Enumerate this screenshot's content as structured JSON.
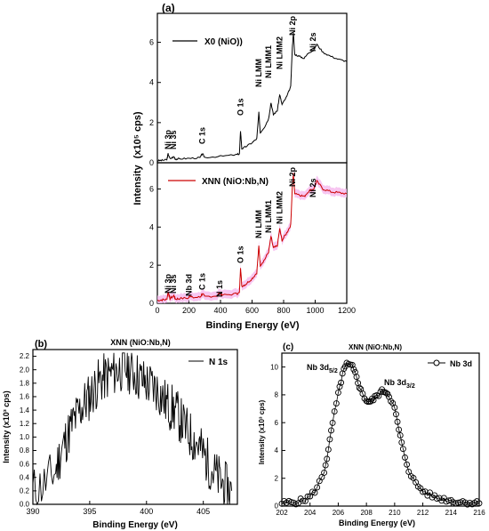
{
  "colors": {
    "x0_line": "#000000",
    "xnn_line": "#cc0000",
    "xnn_band": "#f5b8ee",
    "axis": "#000000"
  },
  "panel_a": {
    "label": "(a)",
    "ylabel": "Intensity",
    "ylabel_unit": "(x10⁵ cps)",
    "xlabel": "Binding Energy  (eV)",
    "xticks": [
      "0",
      "200",
      "400",
      "600",
      "800",
      "1000",
      "1200"
    ],
    "yticks": [
      "0",
      "2",
      "4",
      "6"
    ],
    "top_legend": "X0 (NiO))",
    "bottom_legend": "XNN (NiO:Nb,N)",
    "top_annotations": [
      "Ni 3p",
      "Ni 3s",
      "C 1s",
      "O 1s",
      "Ni LMM",
      "Ni LMM1",
      "Ni LMM2",
      "Ni 2p",
      "Ni 2s"
    ],
    "bottom_annotations": [
      "Ni 3p",
      "Ni 3s",
      "Nb 3d",
      "C 1s",
      "N 1s",
      "O 1s",
      "Ni LMM",
      "Ni LMM1",
      "Ni LMM2",
      "Ni 2p",
      "Ni 2s"
    ]
  },
  "panel_b": {
    "label": "(b)",
    "title": "XNN (NiO:Nb,N)",
    "legend": "N 1s",
    "ylabel": "Intensity  (x10³ cps)",
    "xlabel": "Binding Energy  (eV)",
    "xticks": [
      "390",
      "395",
      "400",
      "405"
    ],
    "yticks": [
      "0.0",
      "0.2",
      "0.4",
      "0.6",
      "0.8",
      "1.0",
      "1.2",
      "1.4",
      "1.6",
      "1.8",
      "2.0",
      "2.2"
    ]
  },
  "panel_c": {
    "label": "(c)",
    "title": "XNN (NiO:Nb,N)",
    "legend": "Nb 3d",
    "ylabel": "Intensity  (x10³ cps)",
    "xlabel": "Binding Energy  (eV)",
    "xticks": [
      "202",
      "204",
      "206",
      "208",
      "210",
      "212",
      "214",
      "216"
    ],
    "yticks": [
      "0",
      "2",
      "4",
      "6",
      "8",
      "10"
    ],
    "peak1_main": "Nb 3d",
    "peak1_sub": "5/2",
    "peak2_main": "Nb 3d",
    "peak2_sub": "3/2"
  },
  "chart_data": [
    {
      "type": "line",
      "panel": "(a)",
      "xlabel": "Binding Energy  (eV)",
      "ylabel": "Intensity (x10⁵ cps)",
      "xlim": [
        0,
        1200
      ],
      "ylim": [
        0,
        7
      ],
      "series": [
        {
          "name": "X0 (NiO))",
          "x": [
            0,
            30,
            60,
            68,
            80,
            105,
            115,
            140,
            200,
            270,
            285,
            300,
            400,
            500,
            520,
            527,
            535,
            560,
            600,
            630,
            643,
            652,
            680,
            705,
            720,
            735,
            760,
            775,
            790,
            820,
            845,
            855,
            862,
            870,
            900,
            930,
            960,
            990,
            1010,
            1050,
            1100,
            1150,
            1200
          ],
          "y": [
            0.1,
            0.12,
            0.15,
            0.45,
            0.2,
            0.3,
            0.18,
            0.2,
            0.22,
            0.25,
            0.45,
            0.27,
            0.32,
            0.4,
            0.45,
            1.6,
            0.7,
            0.8,
            1.0,
            1.2,
            2.5,
            1.5,
            1.8,
            2.2,
            3.0,
            2.4,
            2.6,
            3.4,
            2.9,
            3.3,
            3.8,
            5.7,
            6.5,
            5.4,
            5.3,
            5.2,
            5.5,
            5.6,
            5.9,
            5.5,
            5.3,
            5.15,
            5.05
          ]
        },
        {
          "name": "XNN (NiO:Nb,N)",
          "x": [
            0,
            30,
            60,
            68,
            80,
            105,
            115,
            140,
            200,
            205,
            220,
            270,
            285,
            300,
            380,
            395,
            410,
            500,
            520,
            527,
            535,
            560,
            600,
            630,
            643,
            652,
            680,
            705,
            720,
            735,
            760,
            775,
            790,
            820,
            845,
            855,
            862,
            870,
            900,
            930,
            960,
            990,
            1010,
            1050,
            1100,
            1150,
            1200
          ],
          "y": [
            0.15,
            0.18,
            0.2,
            0.6,
            0.25,
            0.4,
            0.22,
            0.25,
            0.28,
            0.45,
            0.3,
            0.32,
            0.5,
            0.35,
            0.4,
            0.55,
            0.42,
            0.5,
            0.55,
            1.9,
            0.9,
            1.0,
            1.3,
            1.6,
            3.0,
            2.0,
            2.3,
            2.7,
            3.5,
            2.9,
            3.0,
            3.9,
            3.3,
            3.7,
            4.1,
            6.1,
            6.8,
            5.8,
            5.7,
            5.6,
            5.9,
            6.0,
            6.4,
            6.0,
            5.85,
            5.8,
            5.75
          ]
        }
      ]
    },
    {
      "type": "line",
      "panel": "(b)",
      "title": "XNN (NiO:Nb,N)",
      "xlabel": "Binding Energy  (eV)",
      "ylabel": "Intensity  (x10³ cps)",
      "xlim": [
        390,
        408
      ],
      "ylim": [
        0,
        2.3
      ],
      "series": [
        {
          "name": "N 1s",
          "x": [
            390,
            391,
            392,
            392.5,
            393,
            393.5,
            394,
            394.5,
            395,
            395.5,
            396,
            396.5,
            397,
            397.5,
            398,
            398.5,
            399,
            399.5,
            400,
            400.5,
            401,
            401.5,
            402,
            402.5,
            403,
            403.5,
            404,
            404.5,
            405,
            405.5,
            406,
            406.5,
            407,
            407.5
          ],
          "y": [
            0.2,
            0.3,
            0.5,
            0.8,
            1.0,
            1.2,
            1.35,
            1.5,
            1.6,
            1.75,
            1.85,
            1.9,
            1.95,
            2.0,
            2.05,
            2.0,
            1.95,
            1.85,
            1.8,
            1.75,
            1.7,
            1.55,
            1.45,
            1.4,
            1.25,
            1.1,
            1.0,
            0.9,
            0.75,
            0.6,
            0.45,
            0.35,
            0.25,
            0.2
          ]
        }
      ]
    },
    {
      "type": "scatter",
      "panel": "(c)",
      "title": "XNN (NiO:Nb,N)",
      "xlabel": "Binding Energy  (eV)",
      "ylabel": "Intensity  (x10³ cps)",
      "xlim": [
        202,
        216
      ],
      "ylim": [
        0,
        11
      ],
      "series": [
        {
          "name": "Nb 3d",
          "x": [
            202,
            202.5,
            203,
            203.5,
            204,
            204.5,
            205,
            205.3,
            205.6,
            206,
            206.3,
            206.6,
            207,
            207.3,
            207.6,
            208,
            208.3,
            208.6,
            209,
            209.3,
            209.6,
            210,
            210.3,
            210.6,
            211,
            211.5,
            212,
            212.5,
            213,
            213.5,
            214,
            214.5,
            215,
            215.5,
            216
          ],
          "y": [
            0.2,
            0.25,
            0.3,
            0.4,
            0.7,
            1.3,
            2.5,
            4.0,
            6.0,
            8.0,
            9.5,
            10.2,
            10.0,
            9.3,
            8.3,
            7.6,
            7.5,
            7.8,
            8.2,
            8.3,
            8.0,
            7.0,
            5.5,
            4.0,
            2.6,
            1.6,
            1.1,
            0.8,
            0.6,
            0.5,
            0.4,
            0.3,
            0.3,
            0.25,
            0.2
          ]
        }
      ]
    }
  ]
}
